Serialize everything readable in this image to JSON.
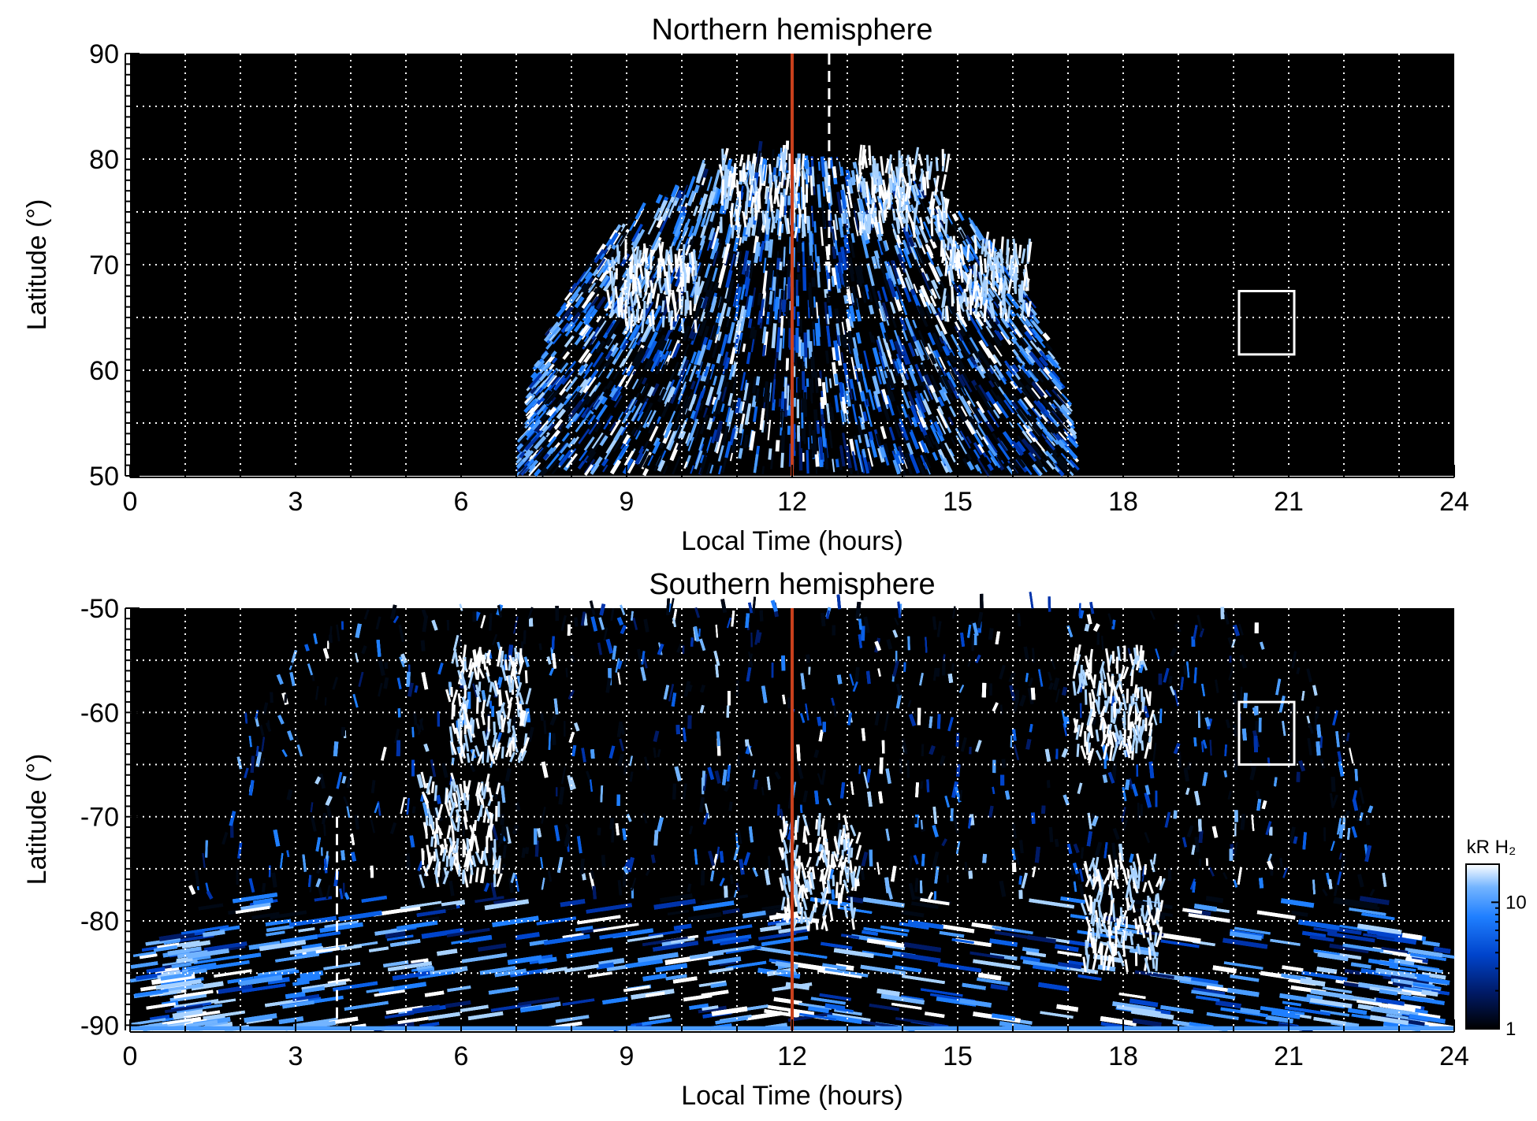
{
  "chart_data": [
    {
      "type": "heatmap",
      "title": "Northern hemisphere",
      "xlabel": "Local Time (hours)",
      "ylabel": "Latitude (°)",
      "xlim": [
        0,
        24
      ],
      "ylim": [
        50,
        90
      ],
      "x_ticks": [
        0,
        3,
        6,
        9,
        12,
        15,
        18,
        21,
        24
      ],
      "y_ticks": [
        50,
        60,
        70,
        80,
        90
      ],
      "x_tick_labels": [
        "0",
        "3",
        "6",
        "9",
        "12",
        "15",
        "18",
        "21",
        "24"
      ],
      "y_tick_labels": [
        "50",
        "60",
        "70",
        "80",
        "90"
      ],
      "grid": true,
      "background": "#000000",
      "emission_region": {
        "lt_range": [
          7.0,
          17.2
        ],
        "max_latitude": 80,
        "bright_patches": [
          {
            "lt": 9.5,
            "lat": 67
          },
          {
            "lt": 11.5,
            "lat": 76
          },
          {
            "lt": 14.0,
            "lat": 76
          },
          {
            "lt": 15.5,
            "lat": 68
          }
        ]
      },
      "noon_line": {
        "lt": 12,
        "color": "#c8401c"
      },
      "dashed_line": {
        "lt": 12.67,
        "lat_range": [
          67,
          90
        ],
        "color": "#ffffff"
      },
      "box": {
        "lt_range": [
          20.1,
          21.1
        ],
        "lat_range": [
          61.5,
          67.5
        ],
        "color": "#ffffff"
      }
    },
    {
      "type": "heatmap",
      "title": "Southern hemisphere",
      "xlabel": "Local Time (hours)",
      "ylabel": "Latitude (°)",
      "xlim": [
        0,
        24
      ],
      "ylim": [
        -90.5,
        -50
      ],
      "x_ticks": [
        0,
        3,
        6,
        9,
        12,
        15,
        18,
        21,
        24
      ],
      "y_ticks": [
        -90,
        -80,
        -70,
        -60,
        -50
      ],
      "x_tick_labels": [
        "0",
        "3",
        "6",
        "9",
        "12",
        "15",
        "18",
        "21",
        "24"
      ],
      "y_tick_labels": [
        "-90",
        "-80",
        "-70",
        "-60",
        "-50"
      ],
      "grid": true,
      "background": "#000000",
      "emission_region": {
        "lt_range": [
          0,
          24
        ],
        "bright_patches": [
          {
            "lt": 6.5,
            "lat": -60
          },
          {
            "lt": 6.0,
            "lat": -72
          },
          {
            "lt": 17.8,
            "lat": -60
          },
          {
            "lt": 18.0,
            "lat": -80
          },
          {
            "lt": 12.5,
            "lat": -76
          }
        ]
      },
      "noon_line": {
        "lt": 12,
        "color": "#c8401c"
      },
      "dashed_line": {
        "lt": 3.75,
        "lat_range": [
          -90,
          -70
        ],
        "color": "#ffffff"
      },
      "box": {
        "lt_range": [
          20.1,
          21.1
        ],
        "lat_range": [
          -65,
          -59
        ],
        "color": "#ffffff"
      }
    }
  ],
  "colorbar": {
    "label": "kR H₂",
    "scale": "log",
    "range": [
      1,
      20
    ],
    "ticks": [
      1,
      10
    ],
    "tick_labels": [
      "1",
      "10"
    ],
    "colors": [
      "#000000",
      "#001a66",
      "#0044cc",
      "#1f7fff",
      "#73b4ff",
      "#ffffff"
    ]
  }
}
